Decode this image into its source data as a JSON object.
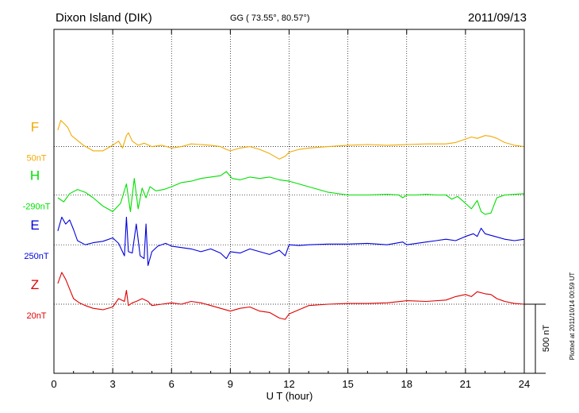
{
  "header": {
    "station": "Dixon Island (DIK)",
    "coords": "GG ( 73.55°,  80.57°)",
    "date": "2011/09/13"
  },
  "footer": {
    "plotted": "Plotted at 2011/10/14 00:59 UT"
  },
  "colors": {
    "F": "#f2a900",
    "H": "#00e000",
    "E": "#0000dd",
    "Z": "#e00000",
    "axis": "#000000"
  },
  "chart_data": {
    "type": "line",
    "xlabel": "U T (hour)",
    "xlim": [
      0,
      24
    ],
    "x_ticks": [
      "0",
      "3",
      "6",
      "9",
      "12",
      "15",
      "18",
      "21",
      "24"
    ],
    "scale_bar_label": "500 nT",
    "scale_bar_nT": 500,
    "ylim_nT": [
      -300,
      1600
    ],
    "grid": "dotted",
    "series": [
      {
        "name": "F",
        "offset_label": "50nT",
        "baseline_nT": 1350,
        "x": [
          0.2,
          0.35,
          0.5,
          0.7,
          0.9,
          1.5,
          2.0,
          2.5,
          3.0,
          3.3,
          3.5,
          3.7,
          3.8,
          4.0,
          4.3,
          4.6,
          5.0,
          5.5,
          6.0,
          6.5,
          7.0,
          7.5,
          8.0,
          8.5,
          8.8,
          9.0,
          9.5,
          10.0,
          10.5,
          11.0,
          11.5,
          11.8,
          12.0,
          12.5,
          13.0,
          14.0,
          15.0,
          16.0,
          17.0,
          18.0,
          19.0,
          20.0,
          20.5,
          21.0,
          21.3,
          21.6,
          22.0,
          22.3,
          22.6,
          23.0,
          23.5,
          24.0
        ],
        "values": [
          120,
          190,
          170,
          140,
          80,
          10,
          -30,
          -30,
          10,
          40,
          -10,
          80,
          100,
          40,
          10,
          25,
          0,
          10,
          -10,
          0,
          20,
          15,
          10,
          0,
          -20,
          -30,
          -10,
          0,
          -20,
          -50,
          -90,
          -70,
          -40,
          -20,
          -10,
          0,
          10,
          15,
          10,
          15,
          20,
          20,
          30,
          55,
          70,
          60,
          80,
          75,
          60,
          30,
          10,
          0
        ]
      },
      {
        "name": "H",
        "offset_label": "-290nT",
        "baseline_nT": 1000,
        "x": [
          0.2,
          0.5,
          0.8,
          1.2,
          1.6,
          2.0,
          2.5,
          3.0,
          3.4,
          3.7,
          3.9,
          4.1,
          4.3,
          4.5,
          4.7,
          4.9,
          5.2,
          5.6,
          6.0,
          6.5,
          7.0,
          7.5,
          8.0,
          8.5,
          8.8,
          9.1,
          9.5,
          10.0,
          10.5,
          11.0,
          11.5,
          12.0,
          12.5,
          13.0,
          13.5,
          14.0,
          15.0,
          16.0,
          17.0,
          17.6,
          17.8,
          18.0,
          18.5,
          19.0,
          19.5,
          20.0,
          20.3,
          20.6,
          21.0,
          21.3,
          21.6,
          21.8,
          22.0,
          22.3,
          22.6,
          23.0,
          23.5,
          24.0
        ],
        "values": [
          -20,
          -50,
          10,
          40,
          20,
          -20,
          -80,
          -120,
          -60,
          80,
          -120,
          120,
          -100,
          50,
          -20,
          60,
          30,
          40,
          60,
          90,
          100,
          120,
          130,
          140,
          170,
          120,
          110,
          130,
          120,
          130,
          110,
          100,
          80,
          60,
          40,
          20,
          0,
          0,
          5,
          0,
          -20,
          0,
          0,
          5,
          0,
          0,
          -30,
          -10,
          -60,
          -100,
          -40,
          -120,
          -140,
          -130,
          -20,
          0,
          5,
          10
        ]
      },
      {
        "name": "E",
        "offset_label": "250nT",
        "baseline_nT": 640,
        "x": [
          0.2,
          0.4,
          0.6,
          0.8,
          1.0,
          1.2,
          1.6,
          2.0,
          2.5,
          3.0,
          3.3,
          3.6,
          3.7,
          3.8,
          4.0,
          4.2,
          4.4,
          4.6,
          4.7,
          4.8,
          5.0,
          5.3,
          5.7,
          6.0,
          6.5,
          7.0,
          7.5,
          8.0,
          8.5,
          8.8,
          9.0,
          9.5,
          10.0,
          10.5,
          11.0,
          11.5,
          11.8,
          12.0,
          12.5,
          13.0,
          14.0,
          15.0,
          16.0,
          17.0,
          17.8,
          18.0,
          18.5,
          19.0,
          19.5,
          20.0,
          20.5,
          21.0,
          21.4,
          21.6,
          21.8,
          22.0,
          22.5,
          23.0,
          23.5,
          24.0
        ],
        "values": [
          100,
          200,
          150,
          180,
          110,
          30,
          0,
          15,
          25,
          50,
          10,
          -80,
          200,
          -50,
          -60,
          150,
          -80,
          -100,
          150,
          -150,
          -50,
          -10,
          10,
          -10,
          -20,
          -30,
          -50,
          -30,
          -60,
          -100,
          -50,
          -60,
          -30,
          -50,
          -70,
          -40,
          -80,
          0,
          -5,
          0,
          5,
          5,
          10,
          0,
          20,
          0,
          10,
          20,
          30,
          40,
          30,
          60,
          80,
          60,
          120,
          80,
          60,
          40,
          30,
          40
        ]
      },
      {
        "name": "Z",
        "offset_label": "20nT",
        "baseline_nT": 210,
        "x": [
          0.2,
          0.4,
          0.6,
          0.8,
          1.0,
          1.3,
          1.6,
          2.0,
          2.5,
          3.0,
          3.3,
          3.6,
          3.7,
          3.8,
          4.0,
          4.2,
          4.5,
          4.8,
          5.0,
          5.5,
          6.0,
          6.5,
          7.0,
          7.5,
          8.0,
          8.5,
          9.0,
          9.5,
          10.0,
          10.5,
          11.0,
          11.5,
          11.8,
          12.0,
          12.5,
          13.0,
          14.0,
          15.0,
          16.0,
          17.0,
          18.0,
          19.0,
          20.0,
          20.5,
          21.0,
          21.3,
          21.6,
          22.0,
          22.3,
          22.6,
          23.0,
          23.5,
          24.0
        ],
        "values": [
          150,
          230,
          180,
          110,
          40,
          10,
          -10,
          -30,
          -40,
          -20,
          40,
          20,
          100,
          -10,
          10,
          20,
          40,
          20,
          -10,
          0,
          10,
          0,
          20,
          10,
          -10,
          -30,
          -50,
          -30,
          -20,
          -50,
          -60,
          -100,
          -110,
          -70,
          -40,
          -10,
          0,
          5,
          5,
          10,
          25,
          20,
          30,
          55,
          70,
          55,
          90,
          75,
          70,
          40,
          20,
          5,
          0
        ]
      }
    ]
  }
}
